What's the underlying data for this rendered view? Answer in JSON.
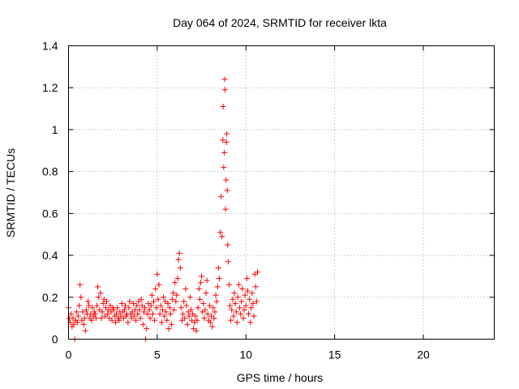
{
  "chart_data": {
    "type": "scatter",
    "title": "Day 064 of 2024, SRMTID for receiver lkta",
    "xlabel": "GPS time / hours",
    "ylabel": "SRMTID / TECUs",
    "xlim": [
      0,
      24
    ],
    "ylim": [
      0,
      1.4
    ],
    "x_ticks": [
      0,
      5,
      10,
      15,
      20
    ],
    "x_tick_labels": [
      "0",
      "5",
      "10",
      "15",
      "20"
    ],
    "y_ticks": [
      0,
      0.2,
      0.4,
      0.6,
      0.8,
      1.0,
      1.2,
      1.4
    ],
    "y_tick_labels": [
      "0",
      "0.2",
      "0.4",
      "0.6",
      "0.8",
      "1",
      "1.2",
      "1.4"
    ],
    "grid": true,
    "marker": "+",
    "series": [
      {
        "name": "SRMTID",
        "color": "#ff0000",
        "points": [
          [
            0.0,
            0.15
          ],
          [
            0.05,
            0.1
          ],
          [
            0.1,
            0.08
          ],
          [
            0.15,
            0.12
          ],
          [
            0.2,
            0.06
          ],
          [
            0.25,
            0.1
          ],
          [
            0.3,
            0.07
          ],
          [
            0.35,
            0.0
          ],
          [
            0.4,
            0.09
          ],
          [
            0.45,
            0.13
          ],
          [
            0.5,
            0.08
          ],
          [
            0.55,
            0.11
          ],
          [
            0.6,
            0.16
          ],
          [
            0.65,
            0.26
          ],
          [
            0.7,
            0.2
          ],
          [
            0.75,
            0.09
          ],
          [
            0.8,
            0.13
          ],
          [
            0.85,
            0.07
          ],
          [
            0.9,
            0.1
          ],
          [
            0.95,
            0.04
          ],
          [
            1.0,
            0.14
          ],
          [
            1.05,
            0.12
          ],
          [
            1.1,
            0.18
          ],
          [
            1.15,
            0.16
          ],
          [
            1.2,
            0.1
          ],
          [
            1.25,
            0.12
          ],
          [
            1.3,
            0.09
          ],
          [
            1.35,
            0.15
          ],
          [
            1.4,
            0.11
          ],
          [
            1.45,
            0.13
          ],
          [
            1.5,
            0.12
          ],
          [
            1.55,
            0.1
          ],
          [
            1.6,
            0.16
          ],
          [
            1.65,
            0.25
          ],
          [
            1.7,
            0.2
          ],
          [
            1.75,
            0.14
          ],
          [
            1.8,
            0.22
          ],
          [
            1.85,
            0.1
          ],
          [
            1.9,
            0.13
          ],
          [
            1.95,
            0.17
          ],
          [
            2.0,
            0.19
          ],
          [
            2.05,
            0.11
          ],
          [
            2.1,
            0.15
          ],
          [
            2.15,
            0.18
          ],
          [
            2.2,
            0.12
          ],
          [
            2.25,
            0.14
          ],
          [
            2.3,
            0.1
          ],
          [
            2.35,
            0.16
          ],
          [
            2.4,
            0.13
          ],
          [
            2.45,
            0.09
          ],
          [
            2.5,
            0.15
          ],
          [
            2.55,
            0.14
          ],
          [
            2.6,
            0.11
          ],
          [
            2.65,
            0.08
          ],
          [
            2.7,
            0.12
          ],
          [
            2.75,
            0.15
          ],
          [
            2.8,
            0.1
          ],
          [
            2.85,
            0.09
          ],
          [
            2.9,
            0.13
          ],
          [
            2.95,
            0.11
          ],
          [
            3.0,
            0.17
          ],
          [
            3.05,
            0.13
          ],
          [
            3.1,
            0.1
          ],
          [
            3.15,
            0.14
          ],
          [
            3.2,
            0.16
          ],
          [
            3.25,
            0.11
          ],
          [
            3.3,
            0.12
          ],
          [
            3.35,
            0.08
          ],
          [
            3.4,
            0.15
          ],
          [
            3.45,
            0.18
          ],
          [
            3.5,
            0.12
          ],
          [
            3.55,
            0.1
          ],
          [
            3.6,
            0.13
          ],
          [
            3.65,
            0.17
          ],
          [
            3.7,
            0.11
          ],
          [
            3.75,
            0.14
          ],
          [
            3.8,
            0.09
          ],
          [
            3.85,
            0.16
          ],
          [
            3.9,
            0.12
          ],
          [
            3.95,
            0.18
          ],
          [
            4.0,
            0.14
          ],
          [
            4.05,
            0.1
          ],
          [
            4.1,
            0.19
          ],
          [
            4.15,
            0.16
          ],
          [
            4.2,
            0.07
          ],
          [
            4.25,
            0.13
          ],
          [
            4.3,
            0.15
          ],
          [
            4.35,
            0.0
          ],
          [
            4.4,
            0.05
          ],
          [
            4.45,
            0.12
          ],
          [
            4.5,
            0.17
          ],
          [
            4.55,
            0.14
          ],
          [
            4.6,
            0.1
          ],
          [
            4.65,
            0.16
          ],
          [
            4.7,
            0.21
          ],
          [
            4.75,
            0.12
          ],
          [
            4.8,
            0.18
          ],
          [
            4.85,
            0.09
          ],
          [
            4.9,
            0.24
          ],
          [
            4.95,
            0.15
          ],
          [
            5.0,
            0.31
          ],
          [
            5.05,
            0.19
          ],
          [
            5.1,
            0.26
          ],
          [
            5.15,
            0.12
          ],
          [
            5.2,
            0.16
          ],
          [
            5.25,
            0.08
          ],
          [
            5.3,
            0.14
          ],
          [
            5.35,
            0.2
          ],
          [
            5.4,
            0.11
          ],
          [
            5.45,
            0.18
          ],
          [
            5.5,
            0.13
          ],
          [
            5.55,
            0.09
          ],
          [
            5.6,
            0.17
          ],
          [
            5.65,
            0.05
          ],
          [
            5.7,
            0.15
          ],
          [
            5.75,
            0.12
          ],
          [
            5.8,
            0.07
          ],
          [
            5.85,
            0.19
          ],
          [
            5.9,
            0.22
          ],
          [
            5.95,
            0.14
          ],
          [
            6.0,
            0.27
          ],
          [
            6.05,
            0.18
          ],
          [
            6.1,
            0.21
          ],
          [
            6.15,
            0.29
          ],
          [
            6.2,
            0.38
          ],
          [
            6.25,
            0.41
          ],
          [
            6.3,
            0.34
          ],
          [
            6.35,
            0.15
          ],
          [
            6.4,
            0.09
          ],
          [
            6.45,
            0.12
          ],
          [
            6.5,
            0.18
          ],
          [
            6.55,
            0.1
          ],
          [
            6.6,
            0.24
          ],
          [
            6.65,
            0.16
          ],
          [
            6.7,
            0.07
          ],
          [
            6.75,
            0.13
          ],
          [
            6.8,
            0.11
          ],
          [
            6.85,
            0.2
          ],
          [
            6.9,
            0.14
          ],
          [
            6.95,
            0.09
          ],
          [
            7.0,
            0.12
          ],
          [
            7.05,
            0.05
          ],
          [
            7.1,
            0.08
          ],
          [
            7.15,
            0.11
          ],
          [
            7.2,
            0.04
          ],
          [
            7.25,
            0.09
          ],
          [
            7.3,
            0.15
          ],
          [
            7.35,
            0.24
          ],
          [
            7.4,
            0.19
          ],
          [
            7.45,
            0.27
          ],
          [
            7.5,
            0.3
          ],
          [
            7.55,
            0.13
          ],
          [
            7.6,
            0.17
          ],
          [
            7.65,
            0.1
          ],
          [
            7.7,
            0.14
          ],
          [
            7.75,
            0.22
          ],
          [
            7.8,
            0.28
          ],
          [
            7.85,
            0.12
          ],
          [
            7.9,
            0.09
          ],
          [
            7.95,
            0.16
          ],
          [
            8.0,
            0.08
          ],
          [
            8.05,
            0.11
          ],
          [
            8.1,
            0.06
          ],
          [
            8.15,
            0.15
          ],
          [
            8.2,
            0.1
          ],
          [
            8.25,
            0.13
          ],
          [
            8.3,
            0.21
          ],
          [
            8.35,
            0.18
          ],
          [
            8.4,
            0.25
          ],
          [
            8.45,
            0.34
          ],
          [
            8.5,
            0.29
          ],
          [
            8.55,
            0.51
          ],
          [
            8.6,
            0.68
          ],
          [
            8.65,
            0.49
          ],
          [
            8.7,
            0.95
          ],
          [
            8.72,
            1.11
          ],
          [
            8.75,
            0.82
          ],
          [
            8.78,
            0.89
          ],
          [
            8.8,
            1.24
          ],
          [
            8.82,
            1.19
          ],
          [
            8.85,
            0.62
          ],
          [
            8.88,
            0.76
          ],
          [
            8.9,
            0.94
          ],
          [
            8.92,
            0.98
          ],
          [
            8.95,
            0.71
          ],
          [
            8.97,
            0.45
          ],
          [
            9.0,
            0.37
          ],
          [
            9.05,
            0.26
          ],
          [
            9.1,
            0.16
          ],
          [
            9.15,
            0.09
          ],
          [
            9.2,
            0.14
          ],
          [
            9.25,
            0.19
          ],
          [
            9.3,
            0.11
          ],
          [
            9.35,
            0.22
          ],
          [
            9.4,
            0.17
          ],
          [
            9.45,
            0.13
          ],
          [
            9.5,
            0.08
          ],
          [
            9.55,
            0.2
          ],
          [
            9.6,
            0.26
          ],
          [
            9.65,
            0.15
          ],
          [
            9.7,
            0.12
          ],
          [
            9.75,
            0.18
          ],
          [
            9.8,
            0.24
          ],
          [
            9.85,
            0.1
          ],
          [
            9.9,
            0.14
          ],
          [
            9.95,
            0.21
          ],
          [
            10.0,
            0.16
          ],
          [
            10.05,
            0.29
          ],
          [
            10.1,
            0.23
          ],
          [
            10.15,
            0.12
          ],
          [
            10.2,
            0.19
          ],
          [
            10.25,
            0.08
          ],
          [
            10.3,
            0.15
          ],
          [
            10.35,
            0.22
          ],
          [
            10.4,
            0.17
          ],
          [
            10.45,
            0.11
          ],
          [
            10.5,
            0.31
          ],
          [
            10.55,
            0.25
          ],
          [
            10.6,
            0.18
          ],
          [
            10.65,
            0.32
          ]
        ]
      }
    ]
  }
}
